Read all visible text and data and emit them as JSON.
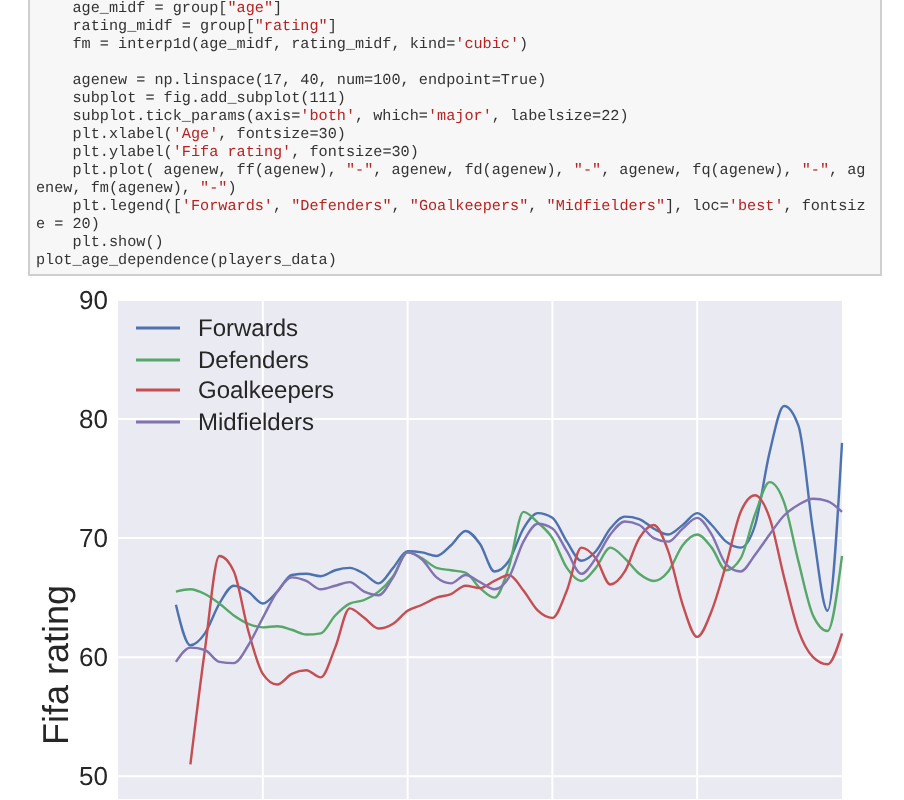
{
  "chart_data": {
    "type": "line",
    "annotations": [
      "    age_midf = group[\"age\"]\n    rating_midf = group[\"rating\"]\n    fm = interp1d(age_midf, rating_midf, kind='cubic')\n\n    agenew = np.linspace(17, 40, num=100, endpoint=True)\n    subplot = fig.add_subplot(111)\n    subplot.tick_params(axis='both', which='major', labelsize=22)\n    plt.xlabel('Age', fontsize=30)\n    plt.ylabel('Fifa rating', fontsize=30)\n    plt.plot( agenew, ff(agenew), \"-\", agenew, fd(agenew), \"-\", agenew, fq(agenew), \"-\", agenew, fm(agenew), \"-\")\n    plt.legend(['Forwards', \"Defenders\", \"Goalkeepers\", \"Midfielders\"], loc='best', fontsize = 20)\n    plt.show()\nplot_age_dependence(players_data)"
    ],
    "ylabel": "Fifa rating",
    "categories": [
      null,
      null,
      null,
      null,
      null,
      null,
      null,
      null,
      null,
      null,
      null,
      null,
      null,
      null,
      null,
      null,
      null,
      null,
      null,
      null,
      null,
      null,
      null,
      null,
      null,
      null,
      null,
      null,
      null,
      null,
      null,
      null,
      null,
      null,
      null,
      null,
      null,
      null,
      null,
      null,
      null,
      null,
      null,
      null,
      null,
      null,
      null,
      null,
      null,
      null,
      null
    ],
    "series": [
      {
        "name": "Forwards",
        "color": "#4c72b0",
        "values": [
          null,
          null,
          null,
          null,
          64.4,
          61.0,
          62.0,
          64.5,
          66.0,
          65.5,
          64.5,
          65.5,
          66.9,
          67.0,
          66.8,
          67.3,
          67.5,
          67.0,
          66.2,
          67.5,
          68.9,
          68.8,
          68.5,
          69.4,
          70.6,
          69.5,
          67.2,
          68.1,
          70.8,
          72.1,
          71.7,
          69.7,
          68.1,
          68.9,
          70.8,
          71.8,
          71.6,
          70.8,
          70.3,
          71.1,
          72.1,
          71.1,
          69.7,
          69.2,
          71.1,
          77.2,
          81.1,
          79.4,
          70.6,
          63.9,
          78
        ]
      },
      {
        "name": "Defenders",
        "color": "#55a868",
        "values": [
          null,
          null,
          null,
          null,
          65.5,
          65.7,
          65.3,
          64.5,
          63.5,
          62.8,
          62.5,
          62.6,
          62.3,
          61.9,
          62.0,
          63.5,
          64.5,
          64.8,
          65.5,
          66.8,
          68.8,
          68.3,
          67.5,
          67.3,
          67.1,
          65.8,
          65.0,
          67.6,
          72.2,
          71.3,
          70.0,
          67.5,
          66.4,
          67.5,
          69.2,
          68.3,
          67.0,
          66.4,
          67.2,
          69.4,
          70.3,
          69.2,
          67.3,
          68.3,
          72.0,
          74.7,
          73.0,
          68.0,
          63.5,
          62.2,
          68.5
        ]
      },
      {
        "name": "Goalkeepers",
        "color": "#c44e52",
        "values": [
          null,
          null,
          null,
          null,
          null,
          51,
          60.6,
          68.5,
          67.2,
          62.2,
          58.6,
          57.7,
          58.6,
          58.9,
          58.3,
          60.8,
          64.1,
          63.3,
          62.4,
          62.8,
          63.9,
          64.4,
          65.0,
          65.3,
          66.0,
          65.8,
          66.4,
          66.9,
          65.6,
          63.9,
          63.3,
          65.6,
          69.2,
          68.3,
          66.1,
          67.2,
          70.0,
          71.1,
          68.9,
          64.4,
          61.7,
          63.9,
          67.8,
          72.2,
          73.6,
          71.7,
          66.7,
          62.2,
          60.0,
          59.4,
          62
        ]
      },
      {
        "name": "Midfielders",
        "color": "#8172b2",
        "values": [
          null,
          null,
          null,
          null,
          59.6,
          60.8,
          60.6,
          59.6,
          59.5,
          61.0,
          63.3,
          65.5,
          66.7,
          66.4,
          65.7,
          66.0,
          66.3,
          65.5,
          65.2,
          66.7,
          68.8,
          68.2,
          66.7,
          66.2,
          66.9,
          66.3,
          65.7,
          66.7,
          69.7,
          71.2,
          70.8,
          68.9,
          67.0,
          68.3,
          70.3,
          71.4,
          71.1,
          70.0,
          69.7,
          70.8,
          71.7,
          70.3,
          67.8,
          67.2,
          68.6,
          70.3,
          71.9,
          72.8,
          73.3,
          73.1,
          72.2
        ]
      }
    ],
    "ylim": [
      48,
      90
    ],
    "yticks": [
      50,
      60,
      70,
      80,
      90
    ],
    "grid": true,
    "legend": "top left"
  }
}
